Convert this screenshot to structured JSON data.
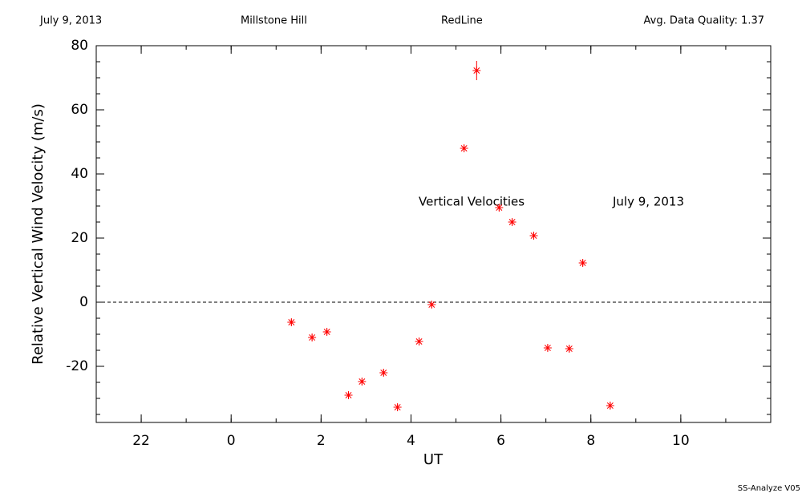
{
  "chart_data": {
    "type": "scatter",
    "header": [
      "July 9, 2013",
      "Millstone Hill",
      "RedLine",
      "Avg. Data Quality: 1.37"
    ],
    "annotations": [
      "Vertical Velocities",
      "July 9, 2013"
    ],
    "footer": "SS-Analyze V05",
    "x_label": "UT",
    "y_label": "Relative Vertical Wind Velocity (m/s)",
    "xlim": [
      -3,
      12
    ],
    "ylim": [
      -37.5,
      80
    ],
    "xticks": [
      {
        "value": -2,
        "label": "22"
      },
      0,
      2,
      4,
      6,
      8,
      10
    ],
    "yticks": [
      -20,
      0,
      20,
      40,
      60,
      80
    ],
    "xminor": 1,
    "yminor": 5,
    "reference_line": 0,
    "series": [
      {
        "color": "#ff0000",
        "x": [
          1.34,
          1.8,
          2.13,
          2.61,
          2.91,
          3.39,
          3.7,
          4.18,
          4.46,
          5.18,
          5.46,
          5.96,
          6.25,
          6.73,
          7.04,
          7.52,
          7.82,
          8.43
        ],
        "y": [
          -6.25,
          -11,
          -9.25,
          -29,
          -24.75,
          -22,
          -32.75,
          -12.25,
          -0.75,
          48,
          72.25,
          29.5,
          25,
          20.75,
          -14.25,
          -14.5,
          12.25,
          -32.25
        ],
        "errors": [
          1,
          1,
          1,
          1,
          1,
          1,
          1,
          1,
          1,
          1,
          3,
          1,
          1,
          1,
          1,
          1,
          1,
          1
        ]
      }
    ]
  }
}
